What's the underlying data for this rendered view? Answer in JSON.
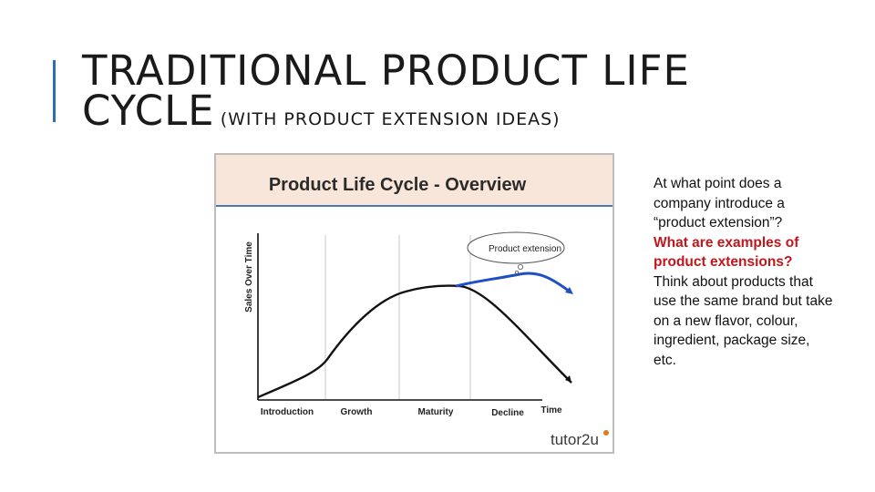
{
  "slide": {
    "title_line1": "TRADITIONAL PRODUCT LIFE",
    "title_line2": "CYCLE",
    "title_sub": "(WITH PRODUCT EXTENSION IDEAS)",
    "accent_color": "#2a6fb0"
  },
  "figure": {
    "header": "Product Life Cycle - Overview",
    "y_axis_label": "Sales Over Time",
    "x_axis_end_label": "Time",
    "stages": [
      "Introduction",
      "Growth",
      "Maturity",
      "Decline"
    ],
    "callout": "Product extension",
    "brand": "tutor2u",
    "colors": {
      "header_bg": "#f9e6da",
      "header_line": "#4a78b8",
      "extension_curve": "#1f4fc4",
      "curve": "#111111"
    }
  },
  "side_text": {
    "intro": "At what point does a company introduce a “product extension”?",
    "question": "What are examples of product extensions?",
    "detail": "Think about products that use the same brand but take on a new flavor, colour, ingredient, package size, etc."
  }
}
